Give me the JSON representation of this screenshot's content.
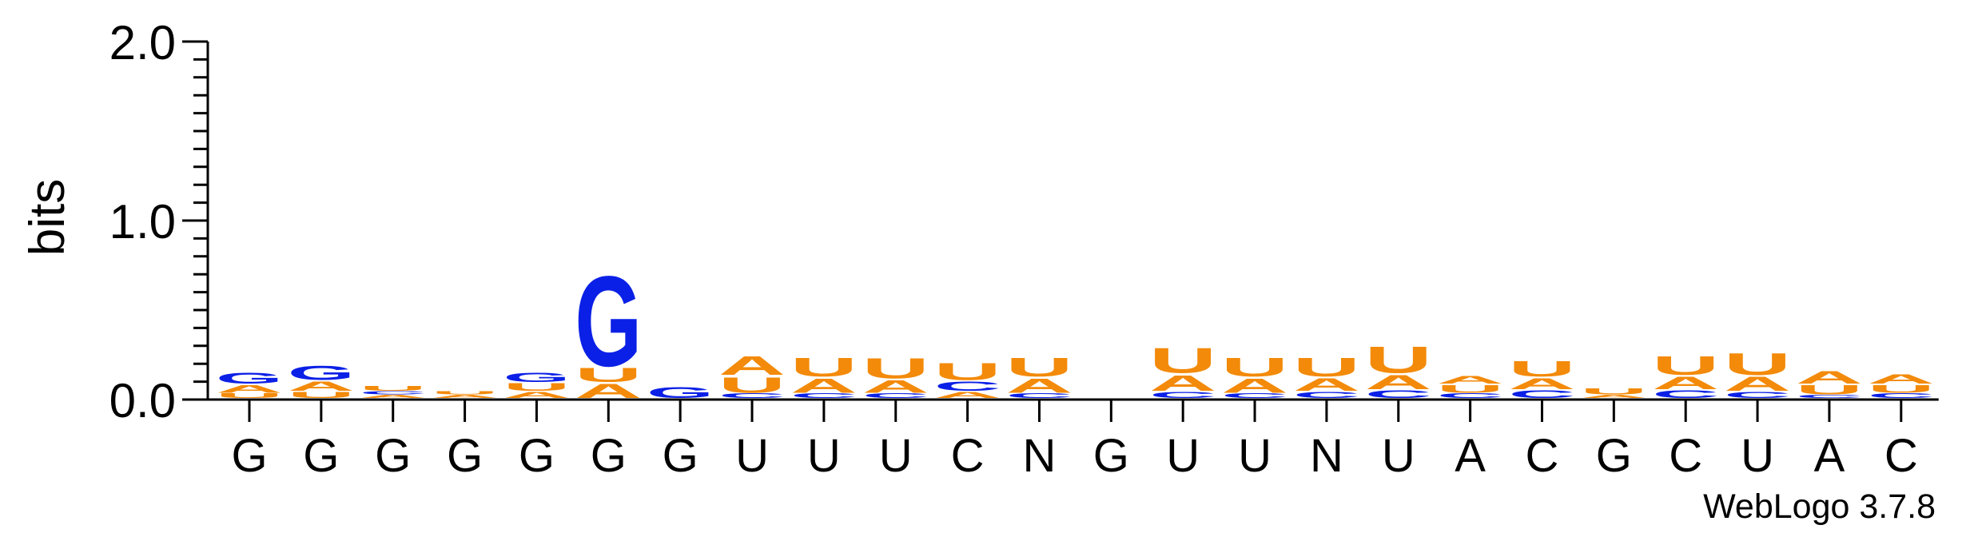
{
  "chart_data": {
    "type": "sequence-logo",
    "ylabel": "bits",
    "ylim": [
      0,
      2.0
    ],
    "yticks": [
      "0.0",
      "1.0",
      "2.0"
    ],
    "grid": false,
    "colors": {
      "G": "#0b20e6",
      "C": "#0b20e6",
      "A": "#f38a0a",
      "U": "#f38a0a"
    },
    "positions": [
      {
        "label": "G",
        "stack": [
          {
            "letter": "U",
            "bits": 0.03
          },
          {
            "letter": "A",
            "bits": 0.05
          },
          {
            "letter": "G",
            "bits": 0.07
          }
        ]
      },
      {
        "label": "G",
        "stack": [
          {
            "letter": "U",
            "bits": 0.04
          },
          {
            "letter": "A",
            "bits": 0.06
          },
          {
            "letter": "G",
            "bits": 0.09
          }
        ]
      },
      {
        "label": "G",
        "stack": [
          {
            "letter": "A",
            "bits": 0.02
          },
          {
            "letter": "C",
            "bits": 0.02
          },
          {
            "letter": "U",
            "bits": 0.03
          }
        ]
      },
      {
        "label": "G",
        "stack": [
          {
            "letter": "A",
            "bits": 0.02
          },
          {
            "letter": "U",
            "bits": 0.02
          }
        ]
      },
      {
        "label": "G",
        "stack": [
          {
            "letter": "A",
            "bits": 0.04
          },
          {
            "letter": "U",
            "bits": 0.05
          },
          {
            "letter": "G",
            "bits": 0.06
          }
        ]
      },
      {
        "label": "G",
        "stack": [
          {
            "letter": "A",
            "bits": 0.09
          },
          {
            "letter": "U",
            "bits": 0.09
          },
          {
            "letter": "G",
            "bits": 0.58
          }
        ]
      },
      {
        "label": "G",
        "stack": [
          {
            "letter": "G",
            "bits": 0.07
          }
        ]
      },
      {
        "label": "U",
        "stack": [
          {
            "letter": "C",
            "bits": 0.03
          },
          {
            "letter": "U",
            "bits": 0.1
          },
          {
            "letter": "A",
            "bits": 0.12
          }
        ]
      },
      {
        "label": "U",
        "stack": [
          {
            "letter": "C",
            "bits": 0.03
          },
          {
            "letter": "A",
            "bits": 0.09
          },
          {
            "letter": "U",
            "bits": 0.12
          }
        ]
      },
      {
        "label": "U",
        "stack": [
          {
            "letter": "C",
            "bits": 0.03
          },
          {
            "letter": "A",
            "bits": 0.08
          },
          {
            "letter": "U",
            "bits": 0.13
          }
        ]
      },
      {
        "label": "C",
        "stack": [
          {
            "letter": "A",
            "bits": 0.04
          },
          {
            "letter": "C",
            "bits": 0.06
          },
          {
            "letter": "U",
            "bits": 0.11
          }
        ]
      },
      {
        "label": "N",
        "stack": [
          {
            "letter": "C",
            "bits": 0.03
          },
          {
            "letter": "A",
            "bits": 0.09
          },
          {
            "letter": "U",
            "bits": 0.12
          }
        ]
      },
      {
        "label": "G",
        "stack": []
      },
      {
        "label": "U",
        "stack": [
          {
            "letter": "C",
            "bits": 0.04
          },
          {
            "letter": "A",
            "bits": 0.1
          },
          {
            "letter": "U",
            "bits": 0.16
          }
        ]
      },
      {
        "label": "U",
        "stack": [
          {
            "letter": "C",
            "bits": 0.03
          },
          {
            "letter": "A",
            "bits": 0.09
          },
          {
            "letter": "U",
            "bits": 0.12
          }
        ]
      },
      {
        "label": "N",
        "stack": [
          {
            "letter": "C",
            "bits": 0.04
          },
          {
            "letter": "A",
            "bits": 0.08
          },
          {
            "letter": "U",
            "bits": 0.12
          }
        ]
      },
      {
        "label": "U",
        "stack": [
          {
            "letter": "C",
            "bits": 0.05
          },
          {
            "letter": "A",
            "bits": 0.09
          },
          {
            "letter": "U",
            "bits": 0.17
          }
        ]
      },
      {
        "label": "A",
        "stack": [
          {
            "letter": "C",
            "bits": 0.03
          },
          {
            "letter": "U",
            "bits": 0.05
          },
          {
            "letter": "A",
            "bits": 0.05
          }
        ]
      },
      {
        "label": "C",
        "stack": [
          {
            "letter": "C",
            "bits": 0.05
          },
          {
            "letter": "A",
            "bits": 0.07
          },
          {
            "letter": "U",
            "bits": 0.1
          }
        ]
      },
      {
        "label": "G",
        "stack": [
          {
            "letter": "A",
            "bits": 0.02
          },
          {
            "letter": "U",
            "bits": 0.04
          }
        ]
      },
      {
        "label": "C",
        "stack": [
          {
            "letter": "C",
            "bits": 0.05
          },
          {
            "letter": "A",
            "bits": 0.08
          },
          {
            "letter": "U",
            "bits": 0.12
          }
        ]
      },
      {
        "label": "U",
        "stack": [
          {
            "letter": "C",
            "bits": 0.04
          },
          {
            "letter": "A",
            "bits": 0.09
          },
          {
            "letter": "U",
            "bits": 0.14
          }
        ]
      },
      {
        "label": "A",
        "stack": [
          {
            "letter": "C",
            "bits": 0.02
          },
          {
            "letter": "U",
            "bits": 0.06
          },
          {
            "letter": "A",
            "bits": 0.08
          }
        ]
      },
      {
        "label": "C",
        "stack": [
          {
            "letter": "C",
            "bits": 0.03
          },
          {
            "letter": "U",
            "bits": 0.05
          },
          {
            "letter": "A",
            "bits": 0.06
          }
        ]
      }
    ]
  },
  "footer": {
    "credit": "WebLogo 3.7.8"
  }
}
